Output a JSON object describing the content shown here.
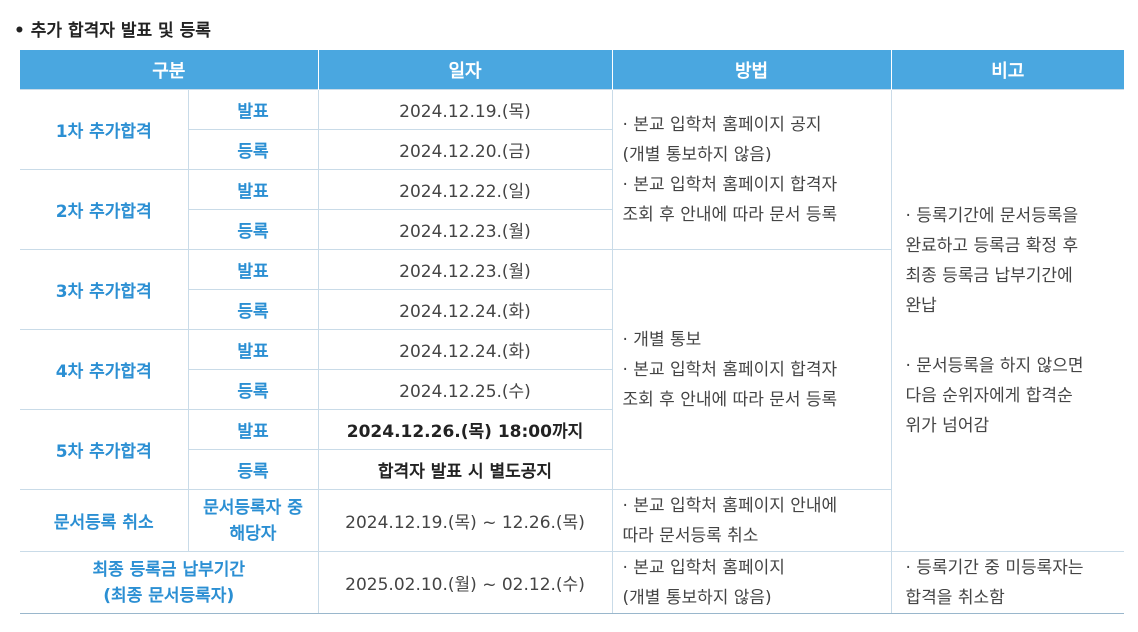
{
  "section_title": "• 추가 합격자 발표 및 등록",
  "headers": [
    "구분",
    "일자",
    "방법",
    "비고"
  ],
  "rows": {
    "r1": {
      "group": "1차 추가합격",
      "announce": "발표",
      "announce_date": "2024.12.19.(목)",
      "register": "등록",
      "register_date": "2024.12.20.(금)"
    },
    "r2": {
      "group": "2차 추가합격",
      "announce": "발표",
      "announce_date": "2024.12.22.(일)",
      "register": "등록",
      "register_date": "2024.12.23.(월)"
    },
    "r3": {
      "group": "3차 추가합격",
      "announce": "발표",
      "announce_date": "2024.12.23.(월)",
      "register": "등록",
      "register_date": "2024.12.24.(화)"
    },
    "r4": {
      "group": "4차 추가합격",
      "announce": "발표",
      "announce_date": "2024.12.24.(화)",
      "register": "등록",
      "register_date": "2024.12.25.(수)"
    },
    "r5": {
      "group": "5차 추가합격",
      "announce": "발표",
      "announce_date": "2024.12.26.(목) 18:00까지",
      "register": "등록",
      "register_date": "합격자 발표 시 별도공지"
    },
    "cancel": {
      "group": "문서등록 취소",
      "sub_line1": "문서등록자 중",
      "sub_line2": "해당자",
      "date": "2024.12.19.(목) ~ 12.26.(목)",
      "method_line1": "· 본교 입학처 홈페이지 안내에",
      "method_line2": "따라 문서등록 취소"
    },
    "final": {
      "group_line1": "최종 등록금 납부기간",
      "group_line2": "(최종 문서등록자)",
      "date": "2025.02.10.(월) ~ 02.12.(수)",
      "method_line1": "· 본교 입학처 홈페이지",
      "method_line2": "(개별 통보하지 않음)",
      "note_line1": "· 등록기간 중 미등록자는",
      "note_line2": "합격을 취소함"
    }
  },
  "method_a": {
    "line1": "· 본교 입학처 홈페이지 공지",
    "line2": "(개별 통보하지 않음)",
    "line3": "· 본교 입학처 홈페이지 합격자",
    "line4": "조회 후 안내에 따라 문서 등록"
  },
  "method_b": {
    "line1": "· 개별 통보",
    "line2": "· 본교 입학처 홈페이지 합격자",
    "line3": "조회 후 안내에 따라 문서 등록"
  },
  "note_a": {
    "line1": "· 등록기간에 문서등록을",
    "line2": "완료하고 등록금 확정 후",
    "line3": "최종 등록금 납부기간에",
    "line4": "완납",
    "line5": "· 문서등록을 하지 않으면",
    "line6": "다음 순위자에게 합격순",
    "line7": "위가 넘어감"
  }
}
